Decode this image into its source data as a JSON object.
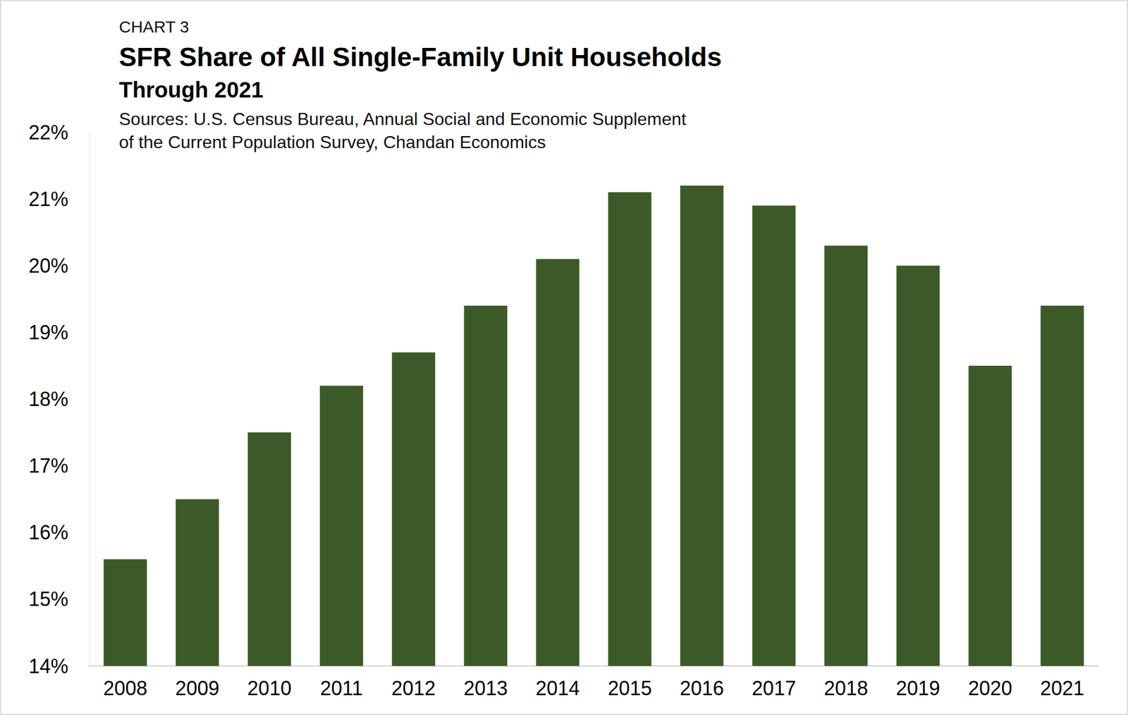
{
  "chart_data": {
    "type": "bar",
    "chart_label": "CHART 3",
    "title": "SFR Share of All Single-Family Unit Households",
    "subtitle": "Through 2021",
    "source": [
      "Sources: U.S. Census Bureau, Annual Social and Economic Supplement",
      "of the Current Population Survey, Chandan Economics"
    ],
    "categories": [
      "2008",
      "2009",
      "2010",
      "2011",
      "2012",
      "2013",
      "2014",
      "2015",
      "2016",
      "2017",
      "2018",
      "2019",
      "2020",
      "2021"
    ],
    "values": [
      15.6,
      16.5,
      17.5,
      18.2,
      18.7,
      19.4,
      20.1,
      21.1,
      21.2,
      20.9,
      20.3,
      20.0,
      18.5,
      19.4
    ],
    "color": "#3c5a27",
    "ylim": [
      14,
      22
    ],
    "yticks": [
      {
        "value": 14,
        "label": "14%"
      },
      {
        "value": 15,
        "label": "15%"
      },
      {
        "value": 16,
        "label": "16%"
      },
      {
        "value": 17,
        "label": "17%"
      },
      {
        "value": 18,
        "label": "18%"
      },
      {
        "value": 19,
        "label": "19%"
      },
      {
        "value": 20,
        "label": "20%"
      },
      {
        "value": 21,
        "label": "21%"
      },
      {
        "value": 22,
        "label": "22%"
      }
    ],
    "grid": false,
    "data_labels": false
  }
}
